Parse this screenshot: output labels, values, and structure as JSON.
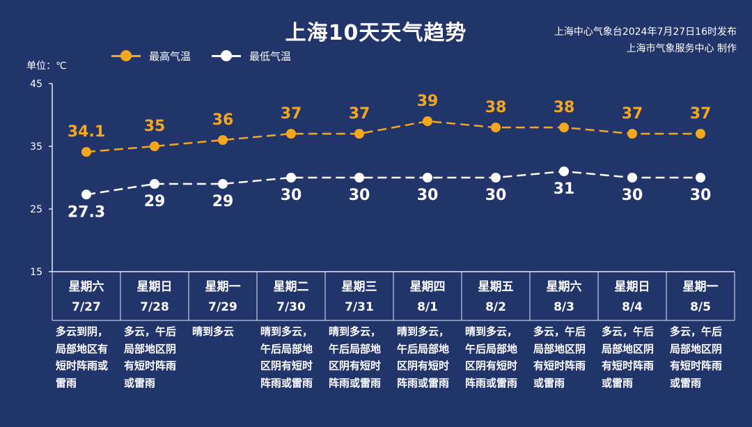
{
  "title": "上海10天天气趋势",
  "issuer_line1": "上海中心气象台2024年7月27日16时发布",
  "issuer_line2": "上海市气象服务中心 制作",
  "unit_label": "单位：℃",
  "colors": {
    "background": "#22356b",
    "high": "#f5a81d",
    "low": "#ffffff",
    "axis": "#e6ecf5"
  },
  "chart_data": {
    "type": "line",
    "title": "上海10天天气趋势",
    "ylabel": "单位：℃",
    "ylim": [
      15,
      45
    ],
    "yticks": [
      "45",
      "35",
      "25",
      "15"
    ],
    "grid": false,
    "legend_position": "top-left",
    "categories": [
      "7/27",
      "7/28",
      "7/29",
      "7/30",
      "7/31",
      "8/1",
      "8/2",
      "8/3",
      "8/4",
      "8/5"
    ],
    "weekdays": [
      "星期六",
      "星期日",
      "星期一",
      "星期二",
      "星期三",
      "星期四",
      "星期五",
      "星期六",
      "星期日",
      "星期一"
    ],
    "series": [
      {
        "name": "最高气温",
        "values": [
          34.1,
          35,
          36,
          37,
          37,
          39,
          38,
          38,
          37,
          37
        ],
        "labels": [
          "34.1",
          "35",
          "36",
          "37",
          "37",
          "39",
          "38",
          "38",
          "37",
          "37"
        ]
      },
      {
        "name": "最低气温",
        "values": [
          27.3,
          29,
          29,
          30,
          30,
          30,
          30,
          31,
          30,
          30
        ],
        "labels": [
          "27.3",
          "29",
          "29",
          "30",
          "30",
          "30",
          "30",
          "31",
          "30",
          "30"
        ]
      }
    ]
  },
  "descriptions": [
    [
      "多云到阴，",
      "局部地区有",
      "短时阵雨或",
      "雷雨"
    ],
    [
      "多云，午后",
      "局部地区阴",
      "有短时阵雨",
      "或雷雨"
    ],
    [
      "晴到多云"
    ],
    [
      "晴到多云，",
      "午后局部地",
      "区阴有短时",
      "阵雨或雷雨"
    ],
    [
      "晴到多云，",
      "午后局部地",
      "区阴有短时",
      "阵雨或雷雨"
    ],
    [
      "晴到多云，",
      "午后局部地",
      "区阴有短时",
      "阵雨或雷雨"
    ],
    [
      "晴到多云，",
      "午后局部地",
      "区阴有短时",
      "阵雨或雷雨"
    ],
    [
      "多云，午后",
      "局部地区阴",
      "有短时阵雨",
      "或雷雨"
    ],
    [
      "多云，午后",
      "局部地区阴",
      "有短时阵雨",
      "或雷雨"
    ],
    [
      "多云，午后",
      "局部地区阴",
      "有短时阵雨",
      "或雷雨"
    ]
  ]
}
